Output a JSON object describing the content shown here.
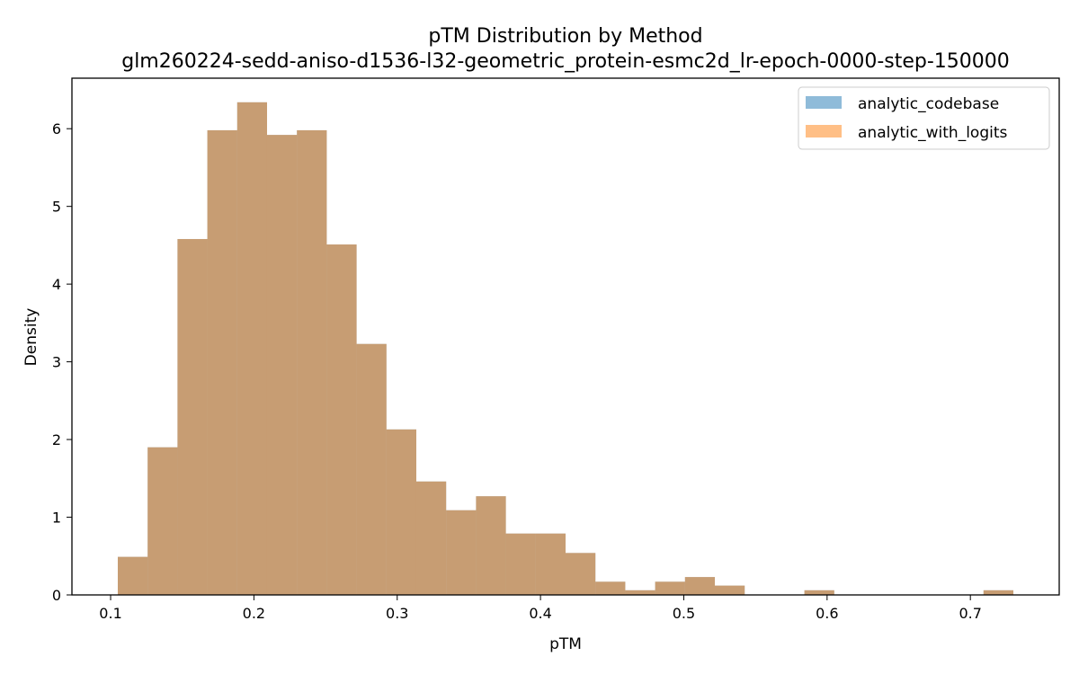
{
  "chart_data": {
    "type": "bar",
    "title": "pTM Distribution by Method",
    "subtitle": "glm260224-sedd-aniso-d1536-l32-geometric_protein-esmc2d_lr-epoch-0000-step-150000",
    "xlabel": "pTM",
    "ylabel": "Density",
    "xlim": [
      0.073,
      0.762
    ],
    "ylim": [
      0,
      6.65
    ],
    "xticks": [
      "0.1",
      "0.2",
      "0.3",
      "0.4",
      "0.5",
      "0.6",
      "0.7"
    ],
    "yticks": [
      "0",
      "1",
      "2",
      "3",
      "4",
      "5",
      "6"
    ],
    "bin_range": [
      0.105,
      0.73
    ],
    "legend_position": "top-right",
    "grid": false,
    "series": [
      {
        "name": "analytic_codebase",
        "color": "#1f77b4",
        "alpha": 0.5,
        "values": [
          0.49,
          1.9,
          4.58,
          5.98,
          6.34,
          5.92,
          5.98,
          4.51,
          3.23,
          2.13,
          1.46,
          1.09,
          1.27,
          0.79,
          0.79,
          0.54,
          0.17,
          0.06,
          0.17,
          0.23,
          0.12,
          0,
          0,
          0.06,
          0,
          0,
          0,
          0,
          0,
          0.06
        ]
      },
      {
        "name": "analytic_with_logits",
        "color": "#ff7f0e",
        "alpha": 0.5,
        "values": [
          0.49,
          1.9,
          4.58,
          5.98,
          6.34,
          5.92,
          5.98,
          4.51,
          3.23,
          2.13,
          1.46,
          1.09,
          1.27,
          0.79,
          0.79,
          0.54,
          0.17,
          0.06,
          0.17,
          0.23,
          0.12,
          0,
          0,
          0.06,
          0,
          0,
          0,
          0,
          0,
          0.06
        ]
      }
    ]
  }
}
